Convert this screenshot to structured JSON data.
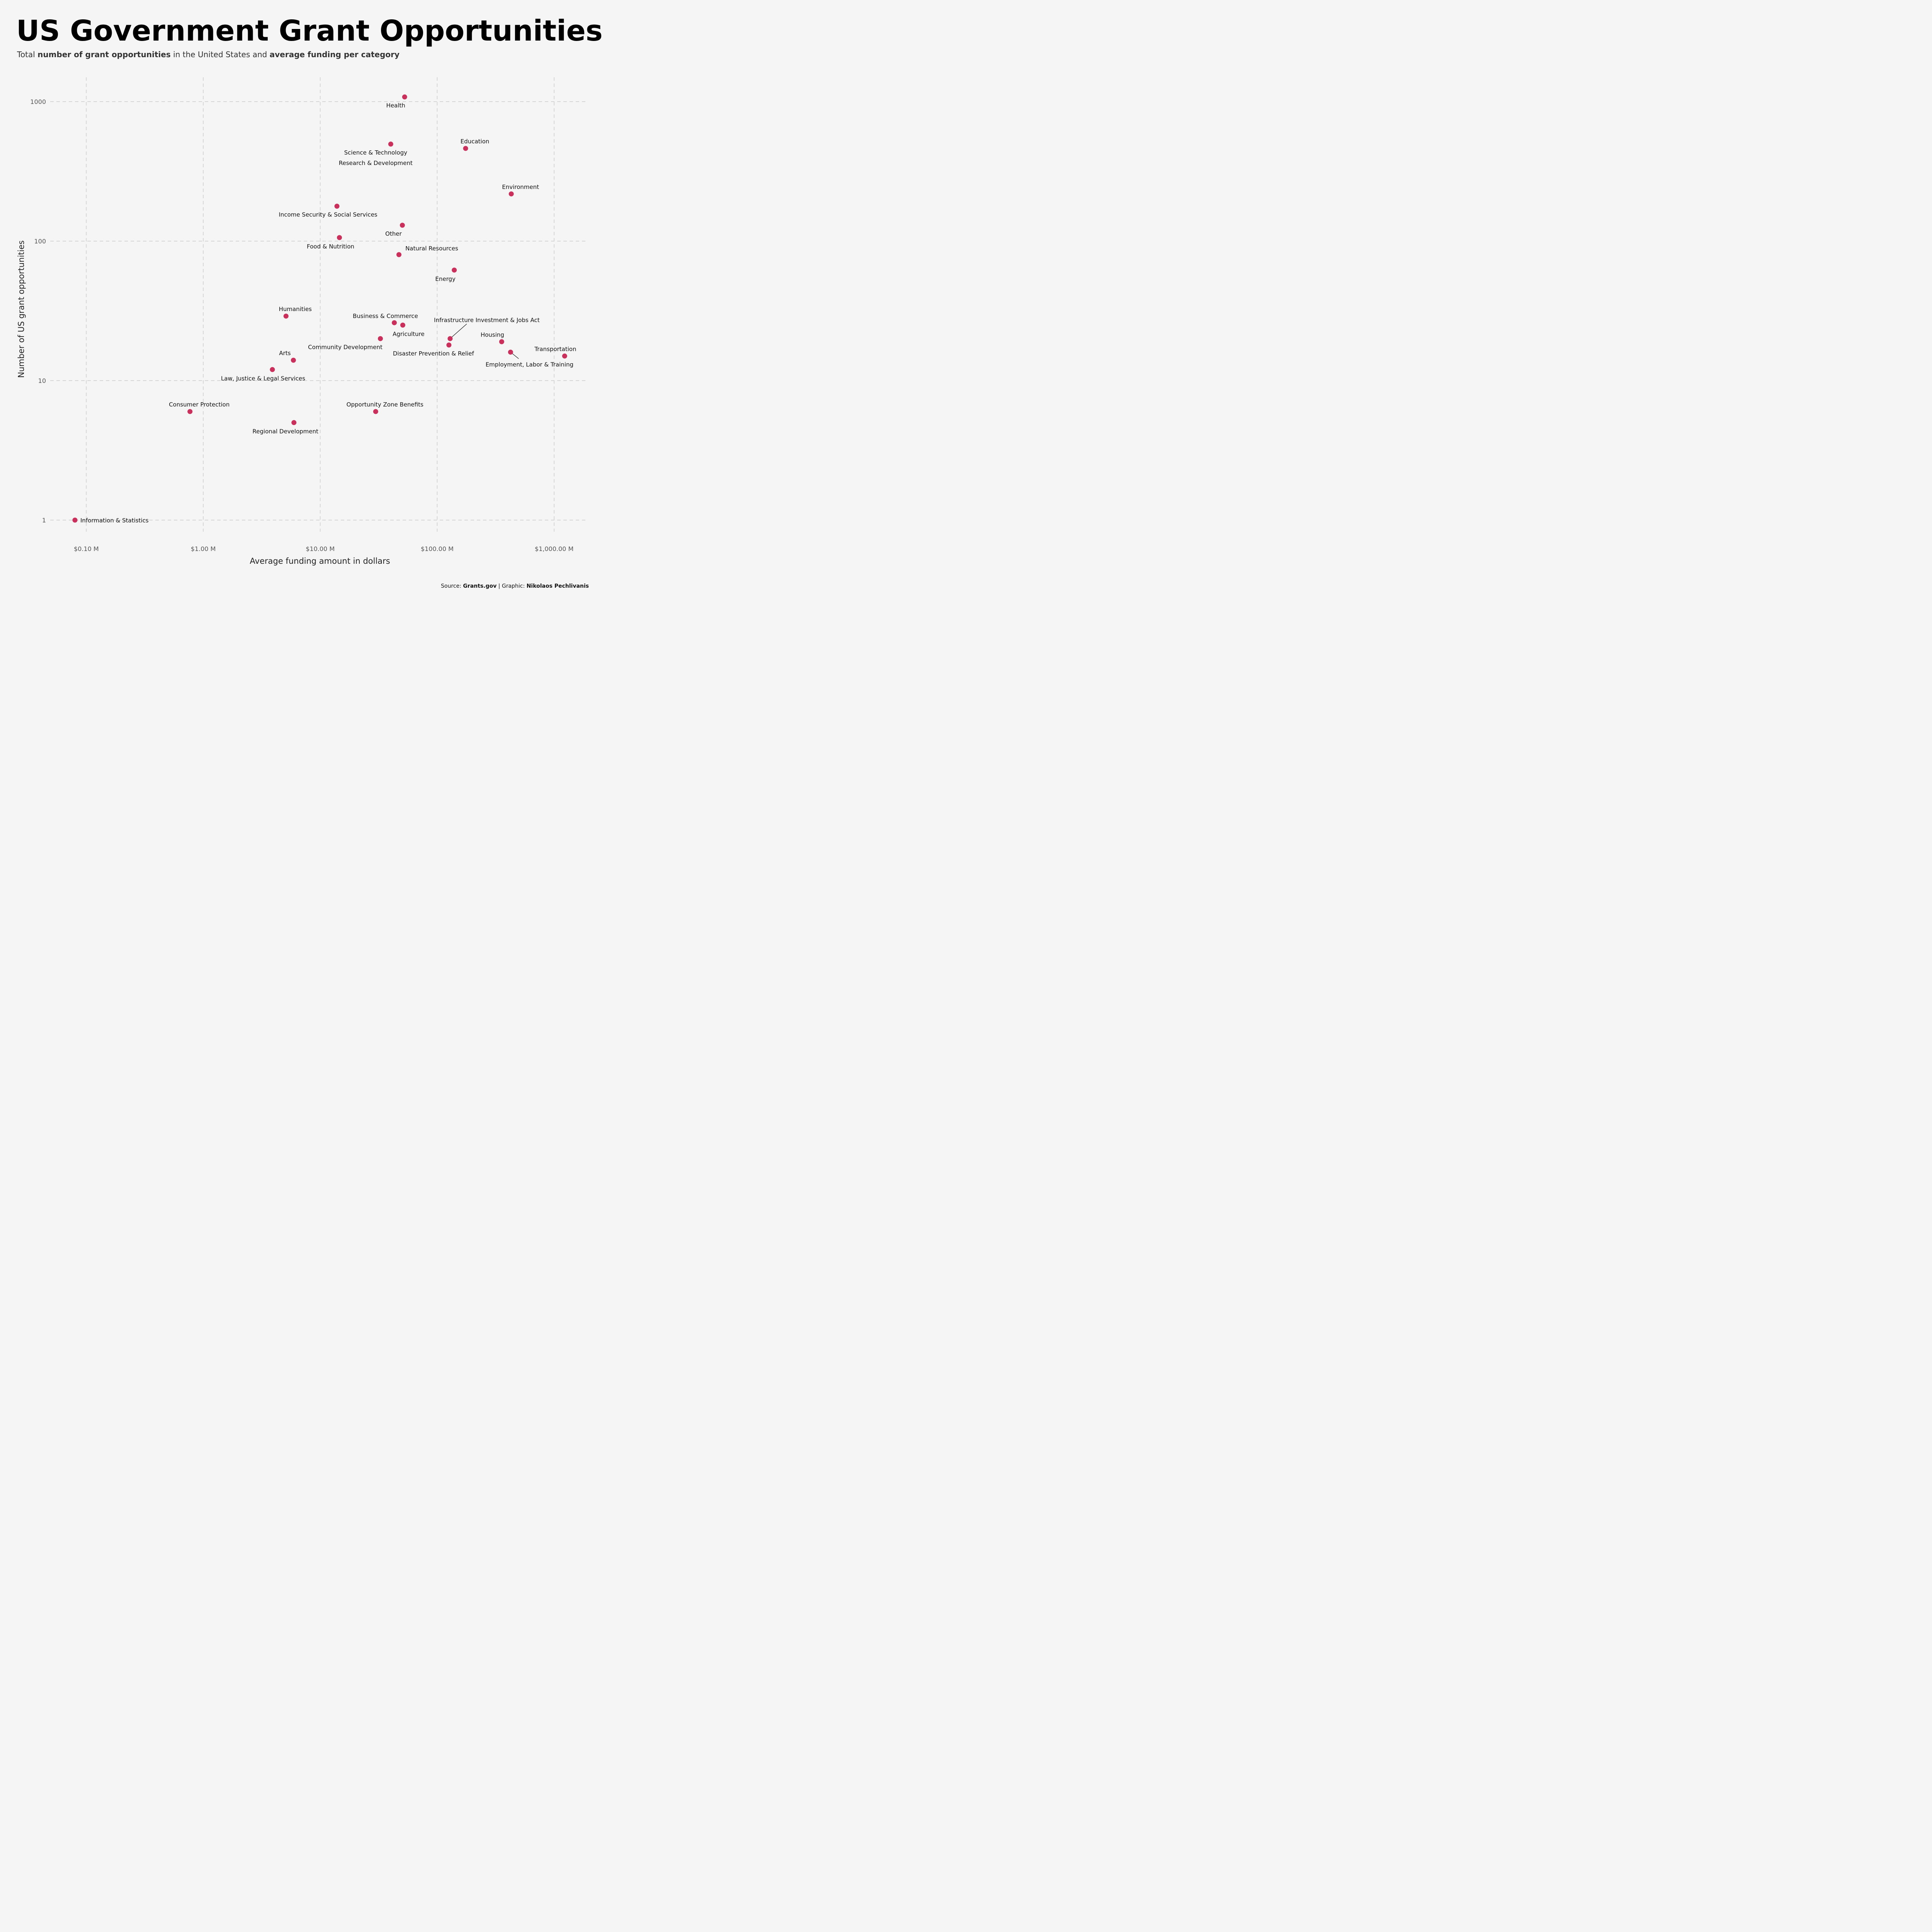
{
  "title": "US Government Grant Opportunities",
  "subtitle": {
    "p1": "Total ",
    "b1": "number of grant opportunities",
    "p2": " in the United States and ",
    "b2": "average funding per category"
  },
  "caption": {
    "p1": "Source: ",
    "b1": "Grants.gov",
    "p2": " | Graphic: ",
    "b2": "Nikolaos Pechlivanis"
  },
  "colors": {
    "point": "#c9305c",
    "background": "#f5f5f5"
  },
  "chart_data": {
    "type": "scatter",
    "xlabel": "Average funding amount in dollars",
    "ylabel": "Number of US grant opportunities",
    "x_scale": "log",
    "y_scale": "log",
    "x_unit": "million USD",
    "xlim": [
      0.06,
      1900
    ],
    "ylim": [
      0.7,
      1500
    ],
    "x_ticks": [
      0.1,
      1,
      10,
      100,
      1000
    ],
    "x_tick_labels": [
      "$0.10 M",
      "$1.00 M",
      "$10.00 M",
      "$100.00 M",
      "$1,000.00 M"
    ],
    "y_ticks": [
      1,
      10,
      100,
      1000
    ],
    "y_tick_labels": [
      "1",
      "10",
      "100",
      "1000"
    ],
    "grid": true,
    "points": [
      {
        "label": "Health",
        "x": 52.7,
        "y": 1080
      },
      {
        "label": "Science & Technology",
        "label2": "Research & Development",
        "x": 40.1,
        "y": 496
      },
      {
        "label": "Education",
        "x": 175,
        "y": 462
      },
      {
        "label": "Environment",
        "x": 430,
        "y": 218
      },
      {
        "label": "Income Security & Social Services",
        "x": 13.9,
        "y": 178
      },
      {
        "label": "Other",
        "x": 50.4,
        "y": 130
      },
      {
        "label": "Food & Nutrition",
        "x": 14.6,
        "y": 106
      },
      {
        "label": "Natural Resources",
        "x": 47.1,
        "y": 80
      },
      {
        "label": "Energy",
        "x": 140,
        "y": 62
      },
      {
        "label": "Humanities",
        "x": 5.1,
        "y": 29
      },
      {
        "label": "Business & Commerce",
        "x": 43,
        "y": 26
      },
      {
        "label": "Agriculture",
        "x": 50.8,
        "y": 25
      },
      {
        "label": "Community Development",
        "x": 32.7,
        "y": 20
      },
      {
        "label": "Infrastructure Investment & Jobs Act",
        "x": 129,
        "y": 20
      },
      {
        "label": "Disaster Prevention & Relief",
        "x": 126,
        "y": 18
      },
      {
        "label": "Housing",
        "x": 356,
        "y": 19
      },
      {
        "label": "Employment, Labor & Training",
        "x": 424,
        "y": 16
      },
      {
        "label": "Transportation",
        "x": 1230,
        "y": 15
      },
      {
        "label": "Arts",
        "x": 5.9,
        "y": 14
      },
      {
        "label": "Law, Justice & Legal Services",
        "x": 3.9,
        "y": 12
      },
      {
        "label": "Consumer Protection",
        "x": 0.77,
        "y": 6
      },
      {
        "label": "Opportunity Zone Benefits",
        "x": 29.8,
        "y": 6
      },
      {
        "label": "Regional Development",
        "x": 5.96,
        "y": 5
      },
      {
        "label": "Information & Statistics",
        "x": 0.08,
        "y": 1
      }
    ]
  }
}
